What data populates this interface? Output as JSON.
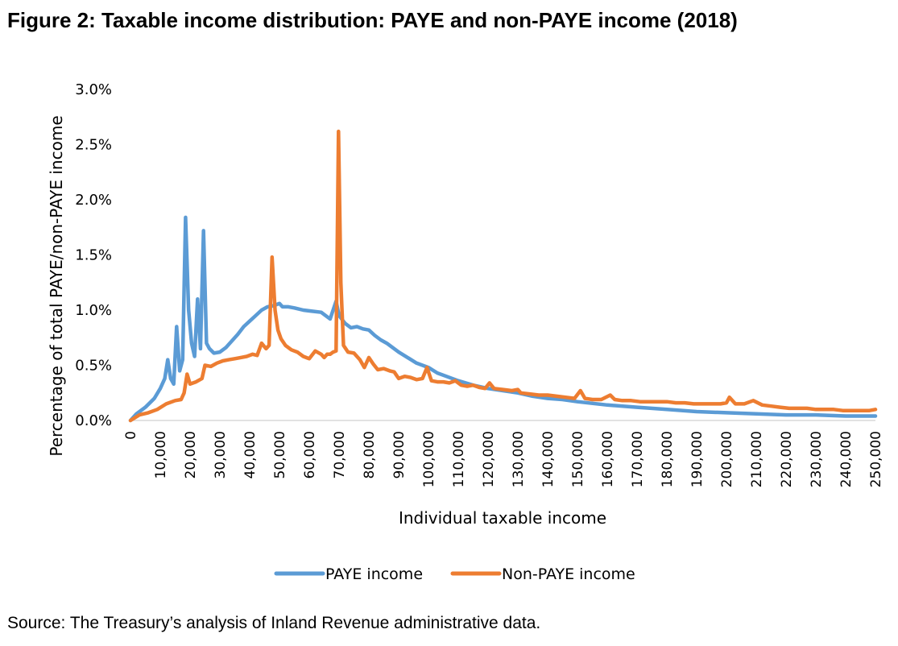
{
  "title": "Figure 2: Taxable income distribution: PAYE and non-PAYE income (2018)",
  "source": "Source: The Treasury’s analysis of Inland Revenue administrative data.",
  "chart_data": {
    "type": "line",
    "xlabel": "Individual taxable income",
    "ylabel": "Percentage of total  PAYE/non-PAYE income",
    "xlim": [
      0,
      250000
    ],
    "ylim": [
      0,
      0.03
    ],
    "x_ticks": [
      "0",
      "10,000",
      "20,000",
      "30,000",
      "40,000",
      "50,000",
      "60,000",
      "70,000",
      "80,000",
      "90,000",
      "100,000",
      "110,000",
      "120,000",
      "130,000",
      "140,000",
      "150,000",
      "160,000",
      "170,000",
      "180,000",
      "190,000",
      "200,000",
      "210,000",
      "220,000",
      "230,000",
      "240,000",
      "250,000"
    ],
    "y_ticks": [
      "0.0%",
      "0.5%",
      "1.0%",
      "1.5%",
      "2.0%",
      "2.5%",
      "3.0%"
    ],
    "legend_position": "bottom",
    "grid": "horizontal baseline only",
    "series": [
      {
        "name": "PAYE income",
        "color": "#5b9bd5",
        "points": [
          [
            0,
            0
          ],
          [
            2000,
            0.0006
          ],
          [
            5000,
            0.0012
          ],
          [
            8000,
            0.002
          ],
          [
            10000,
            0.0029
          ],
          [
            11500,
            0.0038
          ],
          [
            12500,
            0.0055
          ],
          [
            13500,
            0.0038
          ],
          [
            14500,
            0.0033
          ],
          [
            15500,
            0.0085
          ],
          [
            16500,
            0.0045
          ],
          [
            17500,
            0.0055
          ],
          [
            18500,
            0.0184
          ],
          [
            19500,
            0.01
          ],
          [
            20500,
            0.007
          ],
          [
            21500,
            0.0058
          ],
          [
            22500,
            0.011
          ],
          [
            23500,
            0.0065
          ],
          [
            24500,
            0.0172
          ],
          [
            25500,
            0.007
          ],
          [
            26500,
            0.0065
          ],
          [
            28000,
            0.0061
          ],
          [
            30000,
            0.0062
          ],
          [
            32000,
            0.0066
          ],
          [
            34000,
            0.0072
          ],
          [
            36000,
            0.0078
          ],
          [
            38000,
            0.0085
          ],
          [
            40000,
            0.009
          ],
          [
            42000,
            0.0095
          ],
          [
            44000,
            0.01
          ],
          [
            46000,
            0.0103
          ],
          [
            48000,
            0.0104
          ],
          [
            50000,
            0.0106
          ],
          [
            51000,
            0.0103
          ],
          [
            53000,
            0.0103
          ],
          [
            55000,
            0.0102
          ],
          [
            58000,
            0.01
          ],
          [
            61000,
            0.0099
          ],
          [
            64000,
            0.0098
          ],
          [
            67000,
            0.0092
          ],
          [
            69000,
            0.0108
          ],
          [
            70000,
            0.0095
          ],
          [
            72000,
            0.0088
          ],
          [
            74000,
            0.0084
          ],
          [
            76000,
            0.0085
          ],
          [
            78000,
            0.0083
          ],
          [
            80000,
            0.0082
          ],
          [
            82000,
            0.0077
          ],
          [
            84000,
            0.0073
          ],
          [
            86000,
            0.007
          ],
          [
            88000,
            0.0066
          ],
          [
            90000,
            0.0062
          ],
          [
            93000,
            0.0057
          ],
          [
            96000,
            0.0052
          ],
          [
            100000,
            0.0048
          ],
          [
            103000,
            0.0043
          ],
          [
            106000,
            0.004
          ],
          [
            110000,
            0.0036
          ],
          [
            115000,
            0.0032
          ],
          [
            120000,
            0.0029
          ],
          [
            125000,
            0.0027
          ],
          [
            130000,
            0.0025
          ],
          [
            135000,
            0.0022
          ],
          [
            140000,
            0.002
          ],
          [
            145000,
            0.0019
          ],
          [
            150000,
            0.0017
          ],
          [
            160000,
            0.0014
          ],
          [
            170000,
            0.0012
          ],
          [
            180000,
            0.001
          ],
          [
            190000,
            0.0008
          ],
          [
            200000,
            0.0007
          ],
          [
            210000,
            0.0006
          ],
          [
            220000,
            0.0005
          ],
          [
            230000,
            0.0005
          ],
          [
            240000,
            0.0004
          ],
          [
            250000,
            0.0004
          ]
        ]
      },
      {
        "name": "Non-PAYE income",
        "color": "#ed7d31",
        "points": [
          [
            0,
            0
          ],
          [
            3000,
            0.0005
          ],
          [
            6000,
            0.0007
          ],
          [
            9000,
            0.001
          ],
          [
            12000,
            0.0015
          ],
          [
            15000,
            0.0018
          ],
          [
            17000,
            0.0019
          ],
          [
            18000,
            0.0025
          ],
          [
            19000,
            0.0042
          ],
          [
            20000,
            0.0033
          ],
          [
            22000,
            0.0035
          ],
          [
            24000,
            0.0038
          ],
          [
            25000,
            0.005
          ],
          [
            27000,
            0.0049
          ],
          [
            29000,
            0.0052
          ],
          [
            31000,
            0.0054
          ],
          [
            33000,
            0.0055
          ],
          [
            35000,
            0.0056
          ],
          [
            37000,
            0.0057
          ],
          [
            39000,
            0.0058
          ],
          [
            41000,
            0.006
          ],
          [
            42500,
            0.0059
          ],
          [
            44000,
            0.007
          ],
          [
            45500,
            0.0065
          ],
          [
            46500,
            0.0068
          ],
          [
            47500,
            0.0148
          ],
          [
            48500,
            0.01
          ],
          [
            49500,
            0.0082
          ],
          [
            50500,
            0.0074
          ],
          [
            52000,
            0.0068
          ],
          [
            54000,
            0.0064
          ],
          [
            56000,
            0.0062
          ],
          [
            58000,
            0.0058
          ],
          [
            60000,
            0.0056
          ],
          [
            62000,
            0.0063
          ],
          [
            64000,
            0.006
          ],
          [
            65000,
            0.0057
          ],
          [
            66000,
            0.006
          ],
          [
            67000,
            0.006
          ],
          [
            68000,
            0.0062
          ],
          [
            69000,
            0.0063
          ],
          [
            69800,
            0.0262
          ],
          [
            70600,
            0.0125
          ],
          [
            71500,
            0.0068
          ],
          [
            73000,
            0.0062
          ],
          [
            75000,
            0.0061
          ],
          [
            77000,
            0.0055
          ],
          [
            78500,
            0.0048
          ],
          [
            80000,
            0.0057
          ],
          [
            81500,
            0.0051
          ],
          [
            83000,
            0.0046
          ],
          [
            85000,
            0.0047
          ],
          [
            87000,
            0.0045
          ],
          [
            88500,
            0.0044
          ],
          [
            90000,
            0.0038
          ],
          [
            92000,
            0.004
          ],
          [
            94000,
            0.0039
          ],
          [
            96000,
            0.0037
          ],
          [
            98000,
            0.0038
          ],
          [
            99500,
            0.0048
          ],
          [
            101000,
            0.0036
          ],
          [
            103000,
            0.0035
          ],
          [
            105000,
            0.0035
          ],
          [
            107000,
            0.0034
          ],
          [
            109000,
            0.0036
          ],
          [
            111000,
            0.0032
          ],
          [
            113000,
            0.0031
          ],
          [
            115000,
            0.0032
          ],
          [
            117000,
            0.003
          ],
          [
            119000,
            0.0029
          ],
          [
            120500,
            0.0034
          ],
          [
            122000,
            0.0029
          ],
          [
            125000,
            0.0028
          ],
          [
            128000,
            0.0027
          ],
          [
            130000,
            0.0028
          ],
          [
            131000,
            0.0025
          ],
          [
            134000,
            0.0024
          ],
          [
            137000,
            0.0023
          ],
          [
            140000,
            0.0023
          ],
          [
            143000,
            0.0022
          ],
          [
            146000,
            0.0021
          ],
          [
            149000,
            0.002
          ],
          [
            151000,
            0.0027
          ],
          [
            152500,
            0.002
          ],
          [
            155000,
            0.0019
          ],
          [
            158000,
            0.0019
          ],
          [
            161000,
            0.0023
          ],
          [
            162500,
            0.0019
          ],
          [
            165000,
            0.0018
          ],
          [
            168000,
            0.0018
          ],
          [
            171000,
            0.0017
          ],
          [
            174000,
            0.0017
          ],
          [
            177000,
            0.0017
          ],
          [
            180000,
            0.0017
          ],
          [
            183000,
            0.0016
          ],
          [
            186000,
            0.0016
          ],
          [
            189000,
            0.0015
          ],
          [
            192000,
            0.0015
          ],
          [
            195000,
            0.0015
          ],
          [
            198000,
            0.0015
          ],
          [
            200000,
            0.0016
          ],
          [
            201000,
            0.0021
          ],
          [
            203000,
            0.0015
          ],
          [
            206000,
            0.0015
          ],
          [
            209000,
            0.0018
          ],
          [
            212000,
            0.0014
          ],
          [
            215000,
            0.0013
          ],
          [
            218000,
            0.0012
          ],
          [
            221000,
            0.0011
          ],
          [
            224000,
            0.0011
          ],
          [
            227000,
            0.0011
          ],
          [
            230000,
            0.001
          ],
          [
            233000,
            0.001
          ],
          [
            236000,
            0.001
          ],
          [
            239000,
            0.0009
          ],
          [
            242000,
            0.0009
          ],
          [
            245000,
            0.0009
          ],
          [
            248000,
            0.0009
          ],
          [
            250000,
            0.001
          ]
        ]
      }
    ]
  }
}
